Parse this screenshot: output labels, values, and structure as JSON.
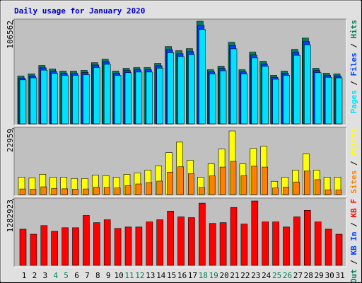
{
  "title": "Daily usage for January 2020",
  "separator": "/",
  "chart_data": [
    {
      "type": "bar",
      "ylim": [
        0,
        106562
      ],
      "yticks": [
        106562
      ],
      "series": [
        {
          "name": "Hits",
          "color": "#00805c",
          "values": [
            49300,
            51475,
            60175,
            56550,
            54375,
            54375,
            55100,
            63075,
            66700,
            54375,
            57275,
            58000,
            58000,
            62350,
            79750,
            75400,
            77575,
            105850,
            55825,
            59450,
            84100,
            55825,
            73950,
            64525,
            50025,
            54375,
            76850,
            88450,
            57275,
            52200,
            51475
          ]
        },
        {
          "name": "Files",
          "color": "#0040ff",
          "values": [
            47300,
            49400,
            57800,
            54300,
            52200,
            52200,
            52900,
            60600,
            64000,
            52200,
            55000,
            55700,
            55700,
            59900,
            76600,
            72400,
            74500,
            101600,
            53600,
            57100,
            80700,
            53600,
            71000,
            61900,
            48000,
            52200,
            73800,
            84900,
            55000,
            50100,
            49400
          ]
        },
        {
          "name": "Pages",
          "color": "#00e0ff",
          "values": [
            45400,
            47400,
            55400,
            52000,
            50000,
            50000,
            50700,
            58000,
            61400,
            50000,
            52700,
            53400,
            53400,
            57400,
            73400,
            69400,
            71400,
            97400,
            51400,
            54700,
            77400,
            51400,
            68000,
            59400,
            46000,
            50000,
            70700,
            81400,
            52700,
            48000,
            47400
          ]
        }
      ]
    },
    {
      "type": "bar",
      "ylim": [
        0,
        22959
      ],
      "yticks": [
        22959
      ],
      "series": [
        {
          "name": "Visits",
          "color": "#ffff00",
          "values": [
            6100,
            5856,
            7076,
            6100,
            6100,
            5612,
            5612,
            6832,
            6588,
            6100,
            7076,
            7564,
            8540,
            10004,
            14640,
            18300,
            11956,
            6100,
            10736,
            15860,
            22204,
            10736,
            16104,
            16836,
            4636,
            6100,
            8540,
            14152,
            8540,
            6100,
            6100
          ]
        },
        {
          "name": "Sites",
          "color": "#ff8000",
          "values": [
            1950,
            1850,
            2700,
            2100,
            2000,
            1900,
            1950,
            2600,
            2500,
            2300,
            3100,
            3700,
            4200,
            4700,
            7800,
            9700,
            7300,
            2500,
            6500,
            9600,
            11600,
            6600,
            9900,
            9600,
            2300,
            2600,
            4400,
            8200,
            5200,
            1650,
            1600
          ]
        }
      ]
    },
    {
      "type": "bar",
      "ylim": [
        0,
        1282923
      ],
      "yticks": [
        1282923
      ],
      "categories": [
        "1",
        "2",
        "3",
        "4",
        "5",
        "6",
        "7",
        "8",
        "9",
        "10",
        "11",
        "12",
        "13",
        "14",
        "15",
        "16",
        "17",
        "18",
        "19",
        "20",
        "21",
        "22",
        "23",
        "24",
        "25",
        "26",
        "27",
        "28",
        "29",
        "30",
        "31"
      ],
      "category_colors": [
        "#000000",
        "#000000",
        "#000000",
        "#00805c",
        "#00805c",
        "#000000",
        "#000000",
        "#000000",
        "#000000",
        "#000000",
        "#00805c",
        "#00805c",
        "#000000",
        "#000000",
        "#000000",
        "#000000",
        "#000000",
        "#00805c",
        "#00805c",
        "#000000",
        "#000000",
        "#000000",
        "#000000",
        "#000000",
        "#00805c",
        "#00805c",
        "#000000",
        "#000000",
        "#000000",
        "#000000",
        "#000000"
      ],
      "series": [
        {
          "name": "KB F",
          "color": "#ff0000",
          "values": [
            704900,
            606214,
            775390,
            662606,
            733096,
            733096,
            972762,
            831782,
            888174,
            718998,
            747194,
            747194,
            845880,
            888174,
            1057350,
            944566,
            930468,
            1212428,
            817684,
            831782,
            1127840,
            803586,
            1254722,
            845880,
            845880,
            747194,
            944566,
            1071448,
            845880,
            704900,
            606214
          ]
        }
      ],
      "legend_only": [
        {
          "name": "KB In",
          "color": "#0040ff"
        },
        {
          "name": "KB Out",
          "color": "#00805c"
        }
      ]
    }
  ]
}
